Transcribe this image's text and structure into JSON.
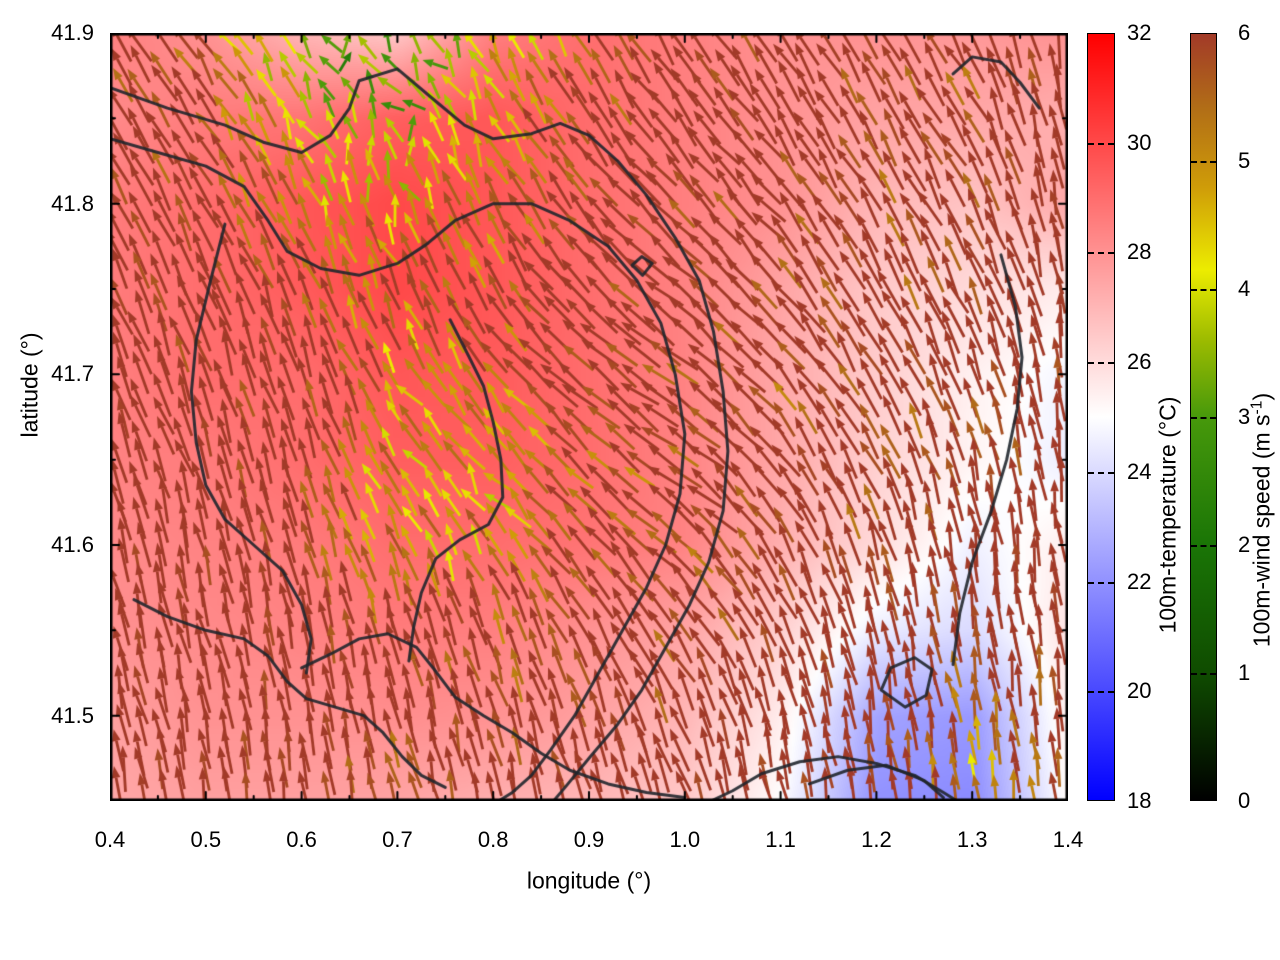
{
  "axes": {
    "x": {
      "label": "longitude (°)",
      "min": 0.4,
      "max": 1.4,
      "minor_step": 0.05,
      "ticks": [
        {
          "value": 0.4,
          "label": "0.4"
        },
        {
          "value": 0.5,
          "label": "0.5"
        },
        {
          "value": 0.6,
          "label": "0.6"
        },
        {
          "value": 0.7,
          "label": "0.7"
        },
        {
          "value": 0.8,
          "label": "0.8"
        },
        {
          "value": 0.9,
          "label": "0.9"
        },
        {
          "value": 1.0,
          "label": "1.0"
        },
        {
          "value": 1.1,
          "label": "1.1"
        },
        {
          "value": 1.2,
          "label": "1.2"
        },
        {
          "value": 1.3,
          "label": "1.3"
        },
        {
          "value": 1.4,
          "label": "1.4"
        }
      ]
    },
    "y": {
      "label": "latitude (°)",
      "min": 41.45,
      "max": 41.9,
      "minor_step": 0.05,
      "ticks": [
        {
          "value": 41.5,
          "label": "41.5"
        },
        {
          "value": 41.6,
          "label": "41.6"
        },
        {
          "value": 41.7,
          "label": "41.7"
        },
        {
          "value": 41.8,
          "label": "41.8"
        },
        {
          "value": 41.9,
          "label": "41.9"
        }
      ]
    }
  },
  "colorbars": {
    "temperature": {
      "label": "100m-temperature (°C)",
      "min": 18,
      "max": 32,
      "ticks": [
        {
          "value": 18,
          "label": "18"
        },
        {
          "value": 20,
          "label": "20"
        },
        {
          "value": 22,
          "label": "22"
        },
        {
          "value": 24,
          "label": "24"
        },
        {
          "value": 26,
          "label": "26"
        },
        {
          "value": 28,
          "label": "28"
        },
        {
          "value": 30,
          "label": "30"
        },
        {
          "value": 32,
          "label": "32"
        }
      ],
      "stops": [
        [
          18,
          "#0000ff"
        ],
        [
          25,
          "#ffffff"
        ],
        [
          32,
          "#ff0000"
        ]
      ]
    },
    "wind": {
      "label_prefix": "100m-wind speed (m s",
      "label_sup": "-1",
      "label_suffix": ")",
      "min": 0,
      "max": 6,
      "ticks": [
        {
          "value": 0,
          "label": "0"
        },
        {
          "value": 1,
          "label": "1"
        },
        {
          "value": 2,
          "label": "2"
        },
        {
          "value": 3,
          "label": "3"
        },
        {
          "value": 4,
          "label": "4"
        },
        {
          "value": 5,
          "label": "5"
        },
        {
          "value": 6,
          "label": "6"
        }
      ],
      "stops": [
        [
          0,
          "#000000"
        ],
        [
          1,
          "#0f4c00"
        ],
        [
          2,
          "#1a7506"
        ],
        [
          3,
          "#47990b"
        ],
        [
          3.6,
          "#9cbb00"
        ],
        [
          4.15,
          "#ecec00"
        ],
        [
          4.8,
          "#cf9c08"
        ],
        [
          5.4,
          "#b26f16"
        ],
        [
          6,
          "#a23a28"
        ]
      ]
    }
  },
  "chart_data": {
    "type": "heatmap",
    "subtype": "temperature-field with wind-vector quiver and contour lines",
    "x_range": [
      0.4,
      1.4
    ],
    "y_range": [
      41.45,
      41.9
    ],
    "grid_lons": [
      0.4,
      0.5,
      0.6,
      0.7,
      0.8,
      0.9,
      1.0,
      1.1,
      1.2,
      1.3,
      1.4
    ],
    "grid_lats": [
      41.9,
      41.85,
      41.8,
      41.75,
      41.7,
      41.65,
      41.6,
      41.55,
      41.5,
      41.45
    ],
    "temperature_grid": [
      [
        28.5,
        28.0,
        27.0,
        26.5,
        28.5,
        29.0,
        28.5,
        28.0,
        28.0,
        27.8,
        28.0
      ],
      [
        28.2,
        28.6,
        28.8,
        29.4,
        29.6,
        29.0,
        28.5,
        28.0,
        27.5,
        27.4,
        27.2
      ],
      [
        28.6,
        29.0,
        29.6,
        30.0,
        29.6,
        29.0,
        28.5,
        28.0,
        27.0,
        26.6,
        27.4
      ],
      [
        28.6,
        29.0,
        29.5,
        30.0,
        29.6,
        29.0,
        28.4,
        27.5,
        26.5,
        26.0,
        25.5
      ],
      [
        28.5,
        29.0,
        29.0,
        29.6,
        29.5,
        29.0,
        28.4,
        27.4,
        26.4,
        25.4,
        24.7
      ],
      [
        28.4,
        28.6,
        29.0,
        29.4,
        29.4,
        29.0,
        28.4,
        27.4,
        26.3,
        25.3,
        24.5
      ],
      [
        28.2,
        28.4,
        28.6,
        29.0,
        29.0,
        28.8,
        28.4,
        27.2,
        26.0,
        24.6,
        25.5
      ],
      [
        28.0,
        28.2,
        28.4,
        28.6,
        28.5,
        28.0,
        27.5,
        26.3,
        24.5,
        24.0,
        25.8
      ],
      [
        27.6,
        28.0,
        28.0,
        28.1,
        28.0,
        27.6,
        27.0,
        25.5,
        22.5,
        22.2,
        25.5
      ],
      [
        27.4,
        27.6,
        27.6,
        27.5,
        27.2,
        27.0,
        26.5,
        25.0,
        22.0,
        21.8,
        25.2
      ]
    ],
    "wind_u_grid": [
      [
        -3.5,
        -3.0,
        -1.5,
        -0.6,
        -2.0,
        -3.0,
        -3.5,
        -3.5,
        -3.0,
        -3.0,
        -1.0
      ],
      [
        -3.5,
        -3.0,
        -1.5,
        -1.0,
        -2.0,
        -3.5,
        -4.0,
        -3.5,
        -3.0,
        -3.0,
        -1.0
      ],
      [
        -3.0,
        -2.5,
        -2.0,
        -1.5,
        -2.5,
        -4.0,
        -4.5,
        -4.0,
        -3.0,
        -3.0,
        -1.0
      ],
      [
        -2.5,
        -2.5,
        -2.0,
        -2.0,
        -3.0,
        -4.5,
        -5.0,
        -4.0,
        -3.0,
        -2.5,
        -1.0
      ],
      [
        -2.5,
        -2.0,
        -2.0,
        -2.5,
        -3.5,
        -5.0,
        -5.0,
        -4.0,
        -3.0,
        -2.0,
        -0.8
      ],
      [
        -2.0,
        -2.0,
        -1.8,
        -2.5,
        -3.0,
        -4.5,
        -5.0,
        -3.5,
        -2.5,
        -1.5,
        -0.8
      ],
      [
        -1.8,
        -1.5,
        -1.5,
        -2.0,
        -2.5,
        -4.0,
        -4.5,
        -3.0,
        -2.0,
        -1.0,
        -0.8
      ],
      [
        -1.5,
        -1.5,
        -1.2,
        -1.5,
        -2.0,
        -3.0,
        -3.5,
        -2.5,
        -1.5,
        -0.8,
        -0.8
      ],
      [
        -1.5,
        -1.2,
        -1.0,
        -1.2,
        -1.5,
        -2.0,
        -2.5,
        -1.5,
        -1.0,
        -1.0,
        -0.6
      ],
      [
        -1.2,
        -1.0,
        -1.0,
        -1.5,
        -1.2,
        -1.5,
        -2.0,
        -1.2,
        -0.8,
        -1.0,
        -0.5
      ]
    ],
    "wind_v_grid": [
      [
        5.0,
        4.5,
        3.0,
        2.5,
        3.5,
        5.0,
        5.5,
        5.5,
        5.5,
        5.5,
        6.5
      ],
      [
        5.5,
        5.0,
        3.5,
        3.0,
        4.0,
        5.0,
        5.0,
        5.5,
        5.5,
        5.5,
        6.5
      ],
      [
        6.0,
        5.5,
        4.5,
        4.0,
        5.0,
        5.0,
        4.5,
        5.0,
        5.5,
        5.5,
        6.5
      ],
      [
        6.0,
        6.0,
        5.5,
        5.0,
        5.0,
        4.5,
        4.0,
        5.0,
        5.5,
        6.0,
        6.5
      ],
      [
        6.0,
        6.0,
        6.0,
        4.2,
        4.5,
        4.0,
        3.5,
        4.5,
        5.5,
        6.0,
        6.5
      ],
      [
        6.5,
        6.0,
        6.0,
        3.8,
        3.6,
        4.0,
        3.5,
        5.0,
        5.5,
        6.0,
        6.5
      ],
      [
        6.5,
        6.5,
        6.0,
        4.2,
        4.0,
        4.5,
        4.0,
        5.5,
        6.0,
        6.5,
        6.5
      ],
      [
        6.5,
        6.5,
        6.5,
        6.0,
        5.5,
        5.5,
        5.0,
        6.0,
        6.5,
        6.5,
        6.5
      ],
      [
        6.5,
        6.5,
        6.5,
        6.5,
        6.0,
        6.0,
        6.0,
        6.5,
        6.5,
        5.0,
        6.5
      ],
      [
        6.5,
        6.5,
        6.5,
        4.8,
        6.5,
        6.5,
        6.5,
        6.5,
        6.5,
        4.5,
        6.5
      ]
    ],
    "contours": [
      [
        [
          0.4,
          41.868
        ],
        [
          0.46,
          41.856
        ],
        [
          0.52,
          41.846
        ],
        [
          0.56,
          41.836
        ],
        [
          0.6,
          41.83
        ],
        [
          0.63,
          41.84
        ],
        [
          0.65,
          41.856
        ],
        [
          0.66,
          41.872
        ],
        [
          0.7,
          41.879
        ],
        [
          0.74,
          41.86
        ],
        [
          0.77,
          41.846
        ],
        [
          0.8,
          41.838
        ],
        [
          0.84,
          41.841
        ],
        [
          0.87,
          41.847
        ],
        [
          0.9,
          41.84
        ],
        [
          0.93,
          41.825
        ],
        [
          0.96,
          41.805
        ],
        [
          0.99,
          41.78
        ],
        [
          1.015,
          41.755
        ],
        [
          1.03,
          41.725
        ],
        [
          1.04,
          41.69
        ],
        [
          1.045,
          41.655
        ],
        [
          1.04,
          41.62
        ],
        [
          1.025,
          41.59
        ],
        [
          1.005,
          41.565
        ],
        [
          0.98,
          41.54
        ],
        [
          0.955,
          41.515
        ],
        [
          0.93,
          41.495
        ],
        [
          0.9,
          41.475
        ],
        [
          0.875,
          41.458
        ],
        [
          0.86,
          41.448
        ]
      ],
      [
        [
          0.4,
          41.838
        ],
        [
          0.45,
          41.83
        ],
        [
          0.5,
          41.822
        ],
        [
          0.54,
          41.81
        ],
        [
          0.565,
          41.79
        ],
        [
          0.585,
          41.772
        ],
        [
          0.62,
          41.762
        ],
        [
          0.66,
          41.758
        ],
        [
          0.7,
          41.765
        ],
        [
          0.73,
          41.776
        ],
        [
          0.76,
          41.79
        ],
        [
          0.8,
          41.8
        ],
        [
          0.84,
          41.8
        ],
        [
          0.88,
          41.79
        ],
        [
          0.92,
          41.775
        ],
        [
          0.95,
          41.755
        ],
        [
          0.975,
          41.73
        ],
        [
          0.99,
          41.7
        ],
        [
          1.0,
          41.665
        ],
        [
          0.995,
          41.63
        ],
        [
          0.98,
          41.6
        ],
        [
          0.96,
          41.575
        ],
        [
          0.935,
          41.55
        ],
        [
          0.91,
          41.525
        ],
        [
          0.885,
          41.5
        ],
        [
          0.86,
          41.48
        ],
        [
          0.84,
          41.465
        ],
        [
          0.82,
          41.455
        ],
        [
          0.8,
          41.448
        ]
      ],
      [
        [
          0.52,
          41.788
        ],
        [
          0.505,
          41.755
        ],
        [
          0.49,
          41.72
        ],
        [
          0.485,
          41.69
        ],
        [
          0.49,
          41.66
        ],
        [
          0.5,
          41.635
        ],
        [
          0.52,
          41.615
        ],
        [
          0.55,
          41.6
        ],
        [
          0.58,
          41.585
        ],
        [
          0.6,
          41.565
        ],
        [
          0.61,
          41.545
        ],
        [
          0.605,
          41.525
        ]
      ],
      [
        [
          0.755,
          41.732
        ],
        [
          0.775,
          41.71
        ],
        [
          0.79,
          41.693
        ],
        [
          0.8,
          41.672
        ],
        [
          0.808,
          41.65
        ],
        [
          0.81,
          41.628
        ],
        [
          0.795,
          41.612
        ],
        [
          0.765,
          41.603
        ],
        [
          0.74,
          41.592
        ],
        [
          0.725,
          41.572
        ],
        [
          0.717,
          41.552
        ],
        [
          0.712,
          41.532
        ]
      ],
      [
        [
          0.425,
          41.568
        ],
        [
          0.46,
          41.558
        ],
        [
          0.5,
          41.55
        ],
        [
          0.54,
          41.545
        ],
        [
          0.565,
          41.535
        ],
        [
          0.585,
          41.52
        ],
        [
          0.605,
          41.51
        ],
        [
          0.635,
          41.505
        ],
        [
          0.665,
          41.5
        ],
        [
          0.685,
          41.49
        ],
        [
          0.705,
          41.476
        ],
        [
          0.725,
          41.465
        ],
        [
          0.75,
          41.458
        ]
      ],
      [
        [
          0.6,
          41.528
        ],
        [
          0.63,
          41.536
        ],
        [
          0.66,
          41.545
        ],
        [
          0.69,
          41.548
        ],
        [
          0.72,
          41.54
        ],
        [
          0.74,
          41.526
        ],
        [
          0.76,
          41.511
        ],
        [
          0.79,
          41.5
        ],
        [
          0.82,
          41.49
        ],
        [
          0.85,
          41.478
        ],
        [
          0.88,
          41.468
        ],
        [
          0.92,
          41.46
        ],
        [
          0.96,
          41.455
        ],
        [
          1.0,
          41.452
        ]
      ],
      [
        [
          1.02,
          41.448
        ],
        [
          1.05,
          41.456
        ],
        [
          1.08,
          41.466
        ],
        [
          1.12,
          41.473
        ],
        [
          1.16,
          41.476
        ],
        [
          1.2,
          41.472
        ],
        [
          1.24,
          41.465
        ],
        [
          1.27,
          41.455
        ],
        [
          1.29,
          41.448
        ]
      ],
      [
        [
          1.13,
          41.46
        ],
        [
          1.17,
          41.468
        ],
        [
          1.21,
          41.471
        ],
        [
          1.25,
          41.462
        ],
        [
          1.27,
          41.452
        ]
      ],
      [
        [
          1.205,
          41.515
        ],
        [
          1.215,
          41.528
        ],
        [
          1.24,
          41.534
        ],
        [
          1.258,
          41.527
        ],
        [
          1.252,
          41.512
        ],
        [
          1.23,
          41.505
        ],
        [
          1.205,
          41.515
        ]
      ],
      [
        [
          1.33,
          41.77
        ],
        [
          1.345,
          41.74
        ],
        [
          1.352,
          41.71
        ],
        [
          1.347,
          41.68
        ],
        [
          1.336,
          41.65
        ],
        [
          1.32,
          41.62
        ],
        [
          1.3,
          41.59
        ],
        [
          1.287,
          41.56
        ],
        [
          1.28,
          41.53
        ]
      ],
      [
        [
          1.28,
          41.876
        ],
        [
          1.3,
          41.886
        ],
        [
          1.33,
          41.883
        ],
        [
          1.35,
          41.871
        ],
        [
          1.37,
          41.856
        ]
      ],
      [
        [
          0.945,
          41.764
        ],
        [
          0.955,
          41.769
        ],
        [
          0.966,
          41.765
        ],
        [
          0.956,
          41.758
        ],
        [
          0.945,
          41.764
        ]
      ]
    ]
  },
  "style": {
    "contour_color": "#20262c",
    "axis_color": "#000000",
    "background": "#ffffff"
  }
}
